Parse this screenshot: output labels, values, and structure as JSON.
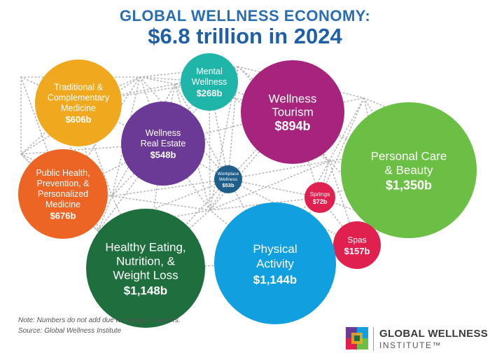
{
  "header": {
    "line1": "GLOBAL WELLNESS ECONOMY:",
    "line2": "$6.8 trillion in 2024"
  },
  "chart_data": {
    "type": "bubble",
    "title": "GLOBAL WELLNESS ECONOMY: $6.8 trillion in 2024",
    "units": "billion USD",
    "total": "$6.8 trillion",
    "year": 2024,
    "sectors": [
      {
        "id": "traditional",
        "name": "Traditional & Complementary Medicine",
        "lines": [
          "Traditional &",
          "Complementary",
          "Medicine"
        ],
        "value_label": "$606b",
        "value": 606,
        "color": "#f0a81e"
      },
      {
        "id": "mental",
        "name": "Mental Wellness",
        "lines": [
          "Mental",
          "Wellness"
        ],
        "value_label": "$268b",
        "value": 268,
        "color": "#20b5a9"
      },
      {
        "id": "tourism",
        "name": "Wellness Tourism",
        "lines": [
          "Wellness",
          "Tourism"
        ],
        "value_label": "$894b",
        "value": 894,
        "color": "#a7247c"
      },
      {
        "id": "personal-care",
        "name": "Personal Care & Beauty",
        "lines": [
          "Personal Care",
          "& Beauty"
        ],
        "value_label": "$1,350b",
        "value": 1350,
        "color": "#6cbf45"
      },
      {
        "id": "real-estate",
        "name": "Wellness Real Estate",
        "lines": [
          "Wellness",
          "Real Estate"
        ],
        "value_label": "$548b",
        "value": 548,
        "color": "#6a3a96"
      },
      {
        "id": "workplace",
        "name": "Workplace Wellness",
        "lines": [
          "Workplace",
          "Wellness"
        ],
        "value_label": "$53b",
        "value": 53,
        "color": "#1e5e8a"
      },
      {
        "id": "springs",
        "name": "Springs",
        "lines": [
          "Springs"
        ],
        "value_label": "$72b",
        "value": 72,
        "color": "#e0204f"
      },
      {
        "id": "public-health",
        "name": "Public Health, Prevention, & Personalized Medicine",
        "lines": [
          "Public Health,",
          "Prevention, &",
          "Personalized",
          "Medicine"
        ],
        "value_label": "$676b",
        "value": 676,
        "color": "#ec6525"
      },
      {
        "id": "spas",
        "name": "Spas",
        "lines": [
          "Spas"
        ],
        "value_label": "$157b",
        "value": 157,
        "color": "#e0204f"
      },
      {
        "id": "healthy-eating",
        "name": "Healthy Eating, Nutrition, & Weight Loss",
        "lines": [
          "Healthy Eating,",
          "Nutrition, &",
          "Weight Loss"
        ],
        "value_label": "$1,148b",
        "value": 1148,
        "color": "#1f6e3e"
      },
      {
        "id": "physical-activity",
        "name": "Physical Activity",
        "lines": [
          "Physical",
          "Activity"
        ],
        "value_label": "$1,144b",
        "value": 1144,
        "color": "#10a0df"
      }
    ]
  },
  "footer": {
    "note": "Note: Numbers do not add due to overlap in sectors.",
    "source": "Source: Global Wellness Institute"
  },
  "logo": {
    "line1": "GLOBAL WELLNESS",
    "line2": "INSTITUTE™",
    "colors": [
      "#6a3a96",
      "#10a0df",
      "#e0204f",
      "#6cbf45",
      "#f0a81e",
      "#1f6e3e"
    ]
  }
}
